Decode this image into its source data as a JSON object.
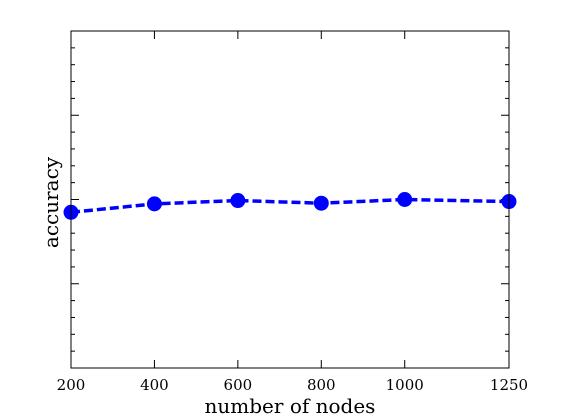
{
  "chart_data": {
    "type": "line",
    "title": "",
    "xlabel": "number of nodes",
    "ylabel": "accuracy",
    "x": [
      200,
      400,
      600,
      800,
      1000,
      1250
    ],
    "x_tick_labels": [
      "200",
      "400",
      "600",
      "800",
      "1000",
      "1250"
    ],
    "xlim": [
      200,
      1250
    ],
    "ylim": [
      0,
      1
    ],
    "y_tick_labels_shown": false,
    "grid": false,
    "legend": "none",
    "series": [
      {
        "values": [
          0.462,
          0.487,
          0.497,
          0.489,
          0.5,
          0.494
        ],
        "color": "#0000ff",
        "line_style": "dashed",
        "marker": "circle"
      }
    ]
  }
}
